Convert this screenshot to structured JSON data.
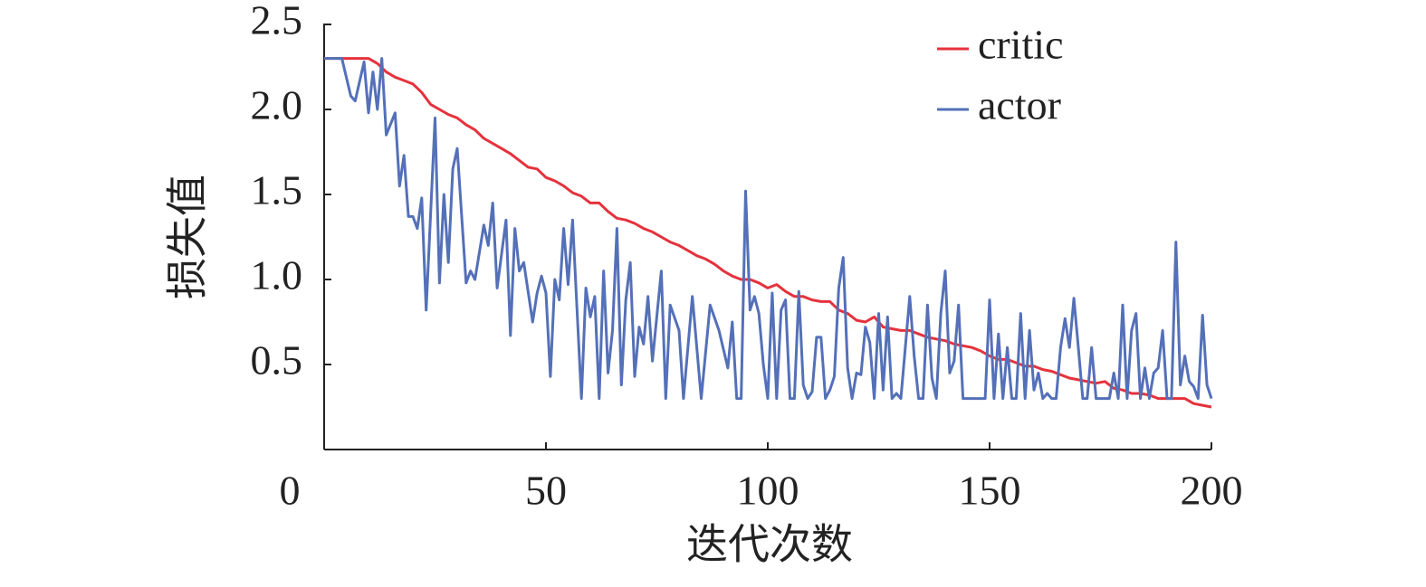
{
  "chart_data": {
    "type": "line",
    "x_label": "迭代次数",
    "y_label": "损失值",
    "xlim": [
      0,
      200
    ],
    "xticks": [
      0,
      50,
      100,
      150,
      200
    ],
    "ylim": [
      0,
      2.5
    ],
    "yticks": [
      0.5,
      {
        "value": 1,
        "label": "1.0"
      },
      1.5,
      {
        "value": 2,
        "label": "2.0"
      },
      2.5
    ],
    "legend": "upper right",
    "series": [
      {
        "name": "critic",
        "color": "#e5323c",
        "x": [
          0,
          2,
          4,
          6,
          8,
          10,
          12,
          14,
          16,
          18,
          20,
          22,
          24,
          26,
          28,
          30,
          32,
          34,
          36,
          38,
          40,
          42,
          44,
          46,
          48,
          50,
          52,
          54,
          56,
          58,
          60,
          62,
          64,
          66,
          68,
          70,
          72,
          74,
          76,
          78,
          80,
          82,
          84,
          86,
          88,
          90,
          92,
          94,
          96,
          98,
          100,
          102,
          104,
          106,
          108,
          110,
          112,
          114,
          116,
          118,
          120,
          122,
          124,
          126,
          128,
          130,
          132,
          134,
          136,
          138,
          140,
          142,
          144,
          146,
          148,
          150,
          152,
          154,
          156,
          158,
          160,
          162,
          164,
          166,
          168,
          170,
          172,
          174,
          176,
          178,
          180,
          182,
          184,
          186,
          188,
          190,
          192,
          194,
          196,
          198,
          200
        ],
        "values": [
          2.3,
          2.3,
          2.3,
          2.3,
          2.3,
          2.3,
          2.27,
          2.22,
          2.19,
          2.17,
          2.15,
          2.1,
          2.03,
          2.0,
          1.97,
          1.95,
          1.91,
          1.88,
          1.83,
          1.8,
          1.77,
          1.74,
          1.7,
          1.66,
          1.65,
          1.6,
          1.58,
          1.55,
          1.51,
          1.49,
          1.45,
          1.45,
          1.4,
          1.36,
          1.35,
          1.33,
          1.3,
          1.28,
          1.25,
          1.22,
          1.2,
          1.17,
          1.14,
          1.12,
          1.09,
          1.05,
          1.02,
          1.0,
          1.0,
          0.98,
          0.95,
          0.97,
          0.93,
          0.9,
          0.9,
          0.88,
          0.87,
          0.87,
          0.82,
          0.8,
          0.76,
          0.75,
          0.78,
          0.72,
          0.71,
          0.7,
          0.7,
          0.68,
          0.66,
          0.65,
          0.64,
          0.62,
          0.61,
          0.6,
          0.58,
          0.55,
          0.53,
          0.53,
          0.51,
          0.49,
          0.49,
          0.47,
          0.46,
          0.44,
          0.42,
          0.41,
          0.4,
          0.39,
          0.4,
          0.36,
          0.35,
          0.33,
          0.33,
          0.32,
          0.3,
          0.3,
          0.3,
          0.3,
          0.27,
          0.26,
          0.25
        ]
      },
      {
        "name": "actor",
        "color": "#5470b8",
        "x": [
          0,
          2,
          4,
          6,
          7,
          9,
          10,
          11,
          12,
          13,
          14,
          16,
          17,
          18,
          19,
          20,
          21,
          22,
          23,
          25,
          26,
          27,
          28,
          29,
          30,
          32,
          33,
          34,
          36,
          37,
          38,
          39,
          41,
          42,
          43,
          44,
          45,
          47,
          48,
          49,
          50,
          51,
          52,
          53,
          54,
          55,
          56,
          58,
          59,
          60,
          61,
          62,
          63,
          64,
          65,
          66,
          67,
          68,
          69,
          70,
          71,
          72,
          73,
          74,
          76,
          77,
          78,
          80,
          81,
          83,
          84,
          85,
          87,
          89,
          91,
          92,
          93,
          94,
          95,
          96,
          97,
          98,
          99,
          100,
          101,
          102,
          103,
          104,
          105,
          106,
          107,
          108,
          109,
          110,
          111,
          112,
          113,
          114,
          115,
          116,
          117,
          118,
          119,
          120,
          121,
          122,
          123,
          124,
          125,
          126,
          127,
          128,
          129,
          130,
          131,
          132,
          133,
          134,
          135,
          136,
          137,
          138,
          139,
          140,
          141,
          142,
          143,
          144,
          145,
          146,
          147,
          148,
          149,
          150,
          151,
          152,
          153,
          154,
          155,
          156,
          157,
          158,
          159,
          160,
          161,
          162,
          163,
          164,
          165,
          166,
          167,
          168,
          169,
          170,
          171,
          172,
          173,
          174,
          175,
          176,
          177,
          178,
          179,
          180,
          181,
          182,
          183,
          184,
          185,
          186,
          187,
          188,
          189,
          190,
          191,
          192,
          193,
          194,
          195,
          196,
          197,
          198,
          199,
          200
        ],
        "values": [
          2.3,
          2.3,
          2.3,
          2.08,
          2.05,
          2.28,
          1.98,
          2.22,
          2.0,
          2.3,
          1.85,
          1.98,
          1.55,
          1.73,
          1.37,
          1.37,
          1.3,
          1.48,
          0.82,
          1.95,
          0.98,
          1.5,
          1.1,
          1.65,
          1.77,
          0.98,
          1.05,
          1.0,
          1.32,
          1.2,
          1.45,
          0.95,
          1.35,
          0.67,
          1.3,
          1.05,
          1.1,
          0.75,
          0.92,
          1.02,
          0.92,
          0.43,
          1.0,
          0.88,
          1.3,
          0.97,
          1.35,
          0.3,
          0.95,
          0.78,
          0.9,
          0.3,
          1.05,
          0.45,
          0.7,
          1.3,
          0.38,
          0.88,
          1.1,
          0.43,
          0.72,
          0.62,
          0.9,
          0.52,
          1.05,
          0.3,
          0.85,
          0.7,
          0.3,
          0.9,
          0.6,
          0.3,
          0.85,
          0.7,
          0.48,
          0.75,
          0.3,
          0.3,
          1.52,
          0.82,
          0.9,
          0.8,
          0.5,
          0.3,
          0.92,
          0.3,
          0.82,
          0.88,
          0.3,
          0.3,
          0.93,
          0.38,
          0.3,
          0.34,
          0.66,
          0.66,
          0.3,
          0.35,
          0.43,
          0.95,
          1.13,
          0.48,
          0.3,
          0.45,
          0.44,
          0.72,
          0.63,
          0.3,
          0.8,
          0.35,
          0.78,
          0.3,
          0.33,
          0.3,
          0.6,
          0.9,
          0.55,
          0.3,
          0.3,
          0.85,
          0.42,
          0.3,
          0.8,
          1.05,
          0.45,
          0.52,
          0.85,
          0.3,
          0.3,
          0.3,
          0.3,
          0.3,
          0.3,
          0.88,
          0.3,
          0.68,
          0.3,
          0.6,
          0.3,
          0.3,
          0.8,
          0.3,
          0.7,
          0.35,
          0.45,
          0.3,
          0.33,
          0.3,
          0.3,
          0.6,
          0.77,
          0.6,
          0.89,
          0.6,
          0.3,
          0.3,
          0.6,
          0.3,
          0.3,
          0.3,
          0.3,
          0.45,
          0.3,
          0.85,
          0.3,
          0.7,
          0.8,
          0.3,
          0.48,
          0.3,
          0.45,
          0.48,
          0.7,
          0.3,
          0.3,
          1.22,
          0.38,
          0.55,
          0.4,
          0.37,
          0.3,
          0.79,
          0.38,
          0.3
        ]
      }
    ]
  }
}
